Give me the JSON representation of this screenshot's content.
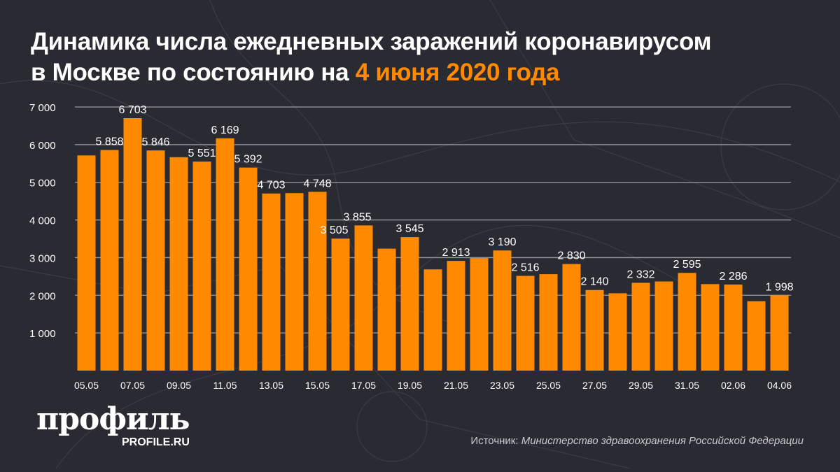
{
  "title": {
    "line1": "Динамика числа ежедневных заражений коронавирусом",
    "line2_prefix": "в Москве по состоянию на ",
    "line2_highlight": "4 июня 2020 года"
  },
  "colors": {
    "bar": "#ff8a00",
    "background": "#2a2a32",
    "grid": "#9a9aa0",
    "text": "#ffffff"
  },
  "chart_data": {
    "type": "bar",
    "title": "Динамика числа ежедневных заражений коронавирусом в Москве по состоянию на 4 июня 2020 года",
    "xlabel": "",
    "ylabel": "",
    "ylim": [
      0,
      7000
    ],
    "yticks": [
      1000,
      2000,
      3000,
      4000,
      5000,
      6000,
      7000
    ],
    "ytick_labels": [
      "1 000",
      "2 000",
      "3 000",
      "4 000",
      "5 000",
      "6 000",
      "7 000"
    ],
    "grid": true,
    "categories": [
      "05.05",
      "06.05",
      "07.05",
      "08.05",
      "09.05",
      "10.05",
      "11.05",
      "12.05",
      "13.05",
      "14.05",
      "15.05",
      "16.05",
      "17.05",
      "18.05",
      "19.05",
      "20.05",
      "21.05",
      "22.05",
      "23.05",
      "24.05",
      "25.05",
      "26.05",
      "27.05",
      "28.05",
      "29.05",
      "30.05",
      "31.05",
      "01.06",
      "02.06",
      "03.06",
      "04.06"
    ],
    "xtick_labels": [
      "05.05",
      "07.05",
      "09.05",
      "11.05",
      "13.05",
      "15.05",
      "17.05",
      "19.05",
      "21.05",
      "23.05",
      "25.05",
      "27.05",
      "29.05",
      "31.05",
      "02.06",
      "04.06"
    ],
    "values": [
      5714,
      5858,
      6703,
      5846,
      5667,
      5551,
      6169,
      5392,
      4703,
      4712,
      4748,
      3505,
      3855,
      3238,
      3545,
      2688,
      2913,
      2988,
      3190,
      2516,
      2560,
      2830,
      2140,
      2054,
      2332,
      2367,
      2595,
      2297,
      2286,
      1842,
      1998
    ],
    "data_labels": [
      "",
      "5 858",
      "6 703",
      "5 846",
      "",
      "5 551",
      "6 169",
      "5 392",
      "4 703",
      "",
      "4 748",
      "3 505",
      "3 855",
      "",
      "3 545",
      "",
      "2 913",
      "",
      "3 190",
      "2 516",
      "",
      "2 830",
      "2 140",
      "",
      "2 332",
      "",
      "2 595",
      "",
      "2 286",
      "",
      "1 998"
    ]
  },
  "logo": {
    "name": "профиль",
    "site": "PROFILE.RU"
  },
  "source": {
    "label": "Источник: ",
    "value": "Министерство здравоохранения Российской Федерации"
  }
}
